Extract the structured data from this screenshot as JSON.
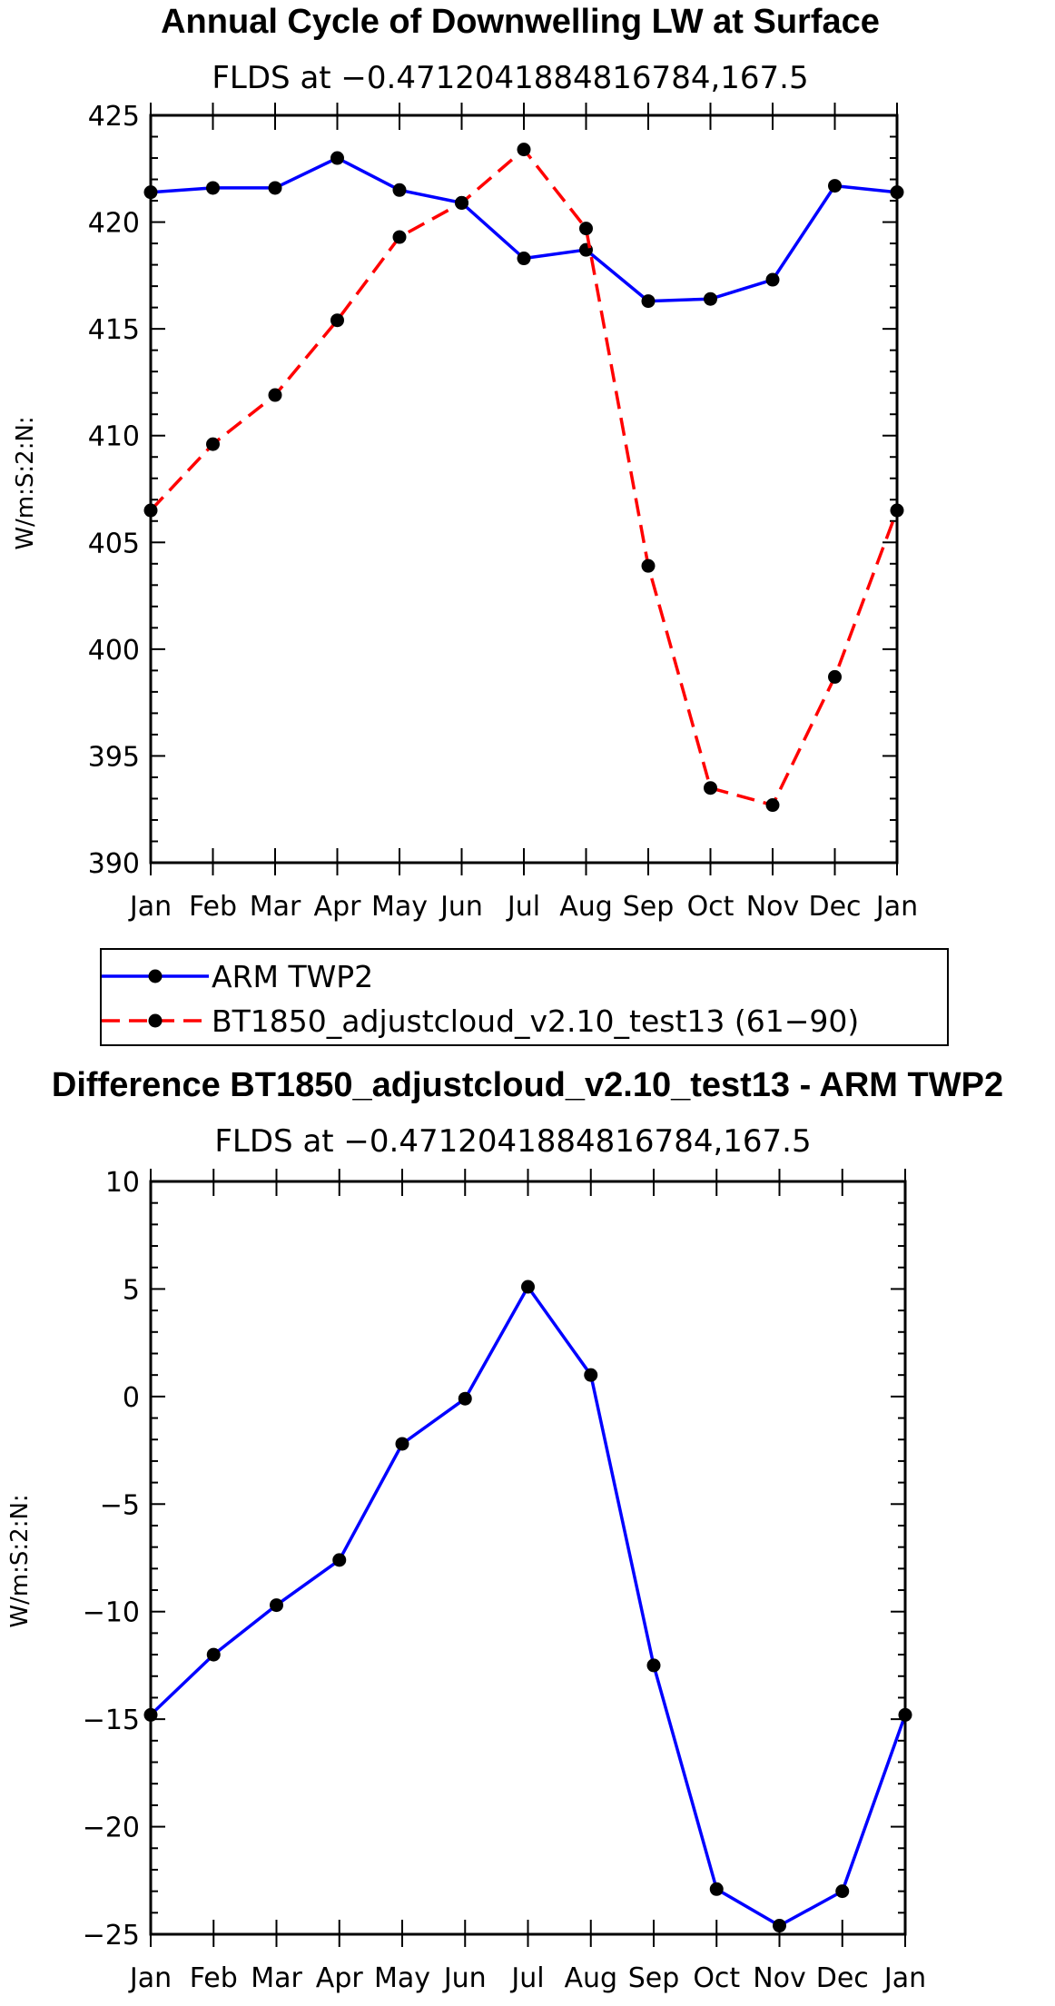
{
  "chart_data": [
    {
      "type": "line",
      "title": "Annual Cycle of Downwelling LW at Surface",
      "subtitle": "FLDS at −0.4712041884816784,167.5",
      "ylabel": "W/m:S:2:N:",
      "xlabel": "",
      "categories": [
        "Jan",
        "Feb",
        "Mar",
        "Apr",
        "May",
        "Jun",
        "Jul",
        "Aug",
        "Sep",
        "Oct",
        "Nov",
        "Dec",
        "Jan"
      ],
      "ylim": [
        390,
        425
      ],
      "yticks": [
        390,
        395,
        400,
        405,
        410,
        415,
        420,
        425
      ],
      "ytick_labels": [
        "390",
        "395",
        "400",
        "405",
        "410",
        "415",
        "420",
        "425"
      ],
      "series": [
        {
          "name": "ARM TWP2",
          "color": "#0000ff",
          "dash": "solid",
          "values": [
            421.4,
            421.6,
            421.6,
            423.0,
            421.5,
            420.9,
            418.3,
            418.7,
            416.3,
            416.4,
            417.3,
            421.7,
            421.4
          ]
        },
        {
          "name": "BT1850_adjustcloud_v2.10_test13 (61−90)",
          "color": "#ff0000",
          "dash": "dashed",
          "values": [
            406.5,
            409.6,
            411.9,
            415.4,
            419.3,
            420.9,
            423.4,
            419.7,
            403.9,
            393.5,
            392.7,
            398.7,
            406.5
          ]
        }
      ],
      "legend_position": "below"
    },
    {
      "type": "line",
      "title": "Difference BT1850_adjustcloud_v2.10_test13 - ARM TWP2",
      "subtitle": "FLDS at −0.4712041884816784,167.5",
      "ylabel": "W/m:S:2:N:",
      "xlabel": "",
      "categories": [
        "Jan",
        "Feb",
        "Mar",
        "Apr",
        "May",
        "Jun",
        "Jul",
        "Aug",
        "Sep",
        "Oct",
        "Nov",
        "Dec",
        "Jan"
      ],
      "ylim": [
        -25,
        10
      ],
      "yticks": [
        -25,
        -20,
        -15,
        -10,
        -5,
        0,
        5,
        10
      ],
      "ytick_labels": [
        "−25",
        "−20",
        "−15",
        "−10",
        "−5",
        "0",
        "5",
        "10"
      ],
      "series": [
        {
          "name": "Difference",
          "color": "#0000ff",
          "dash": "solid",
          "values": [
            -14.8,
            -12.0,
            -9.7,
            -7.6,
            -2.2,
            -0.1,
            5.1,
            1.0,
            -12.5,
            -22.9,
            -24.6,
            -23.0,
            -14.8
          ]
        }
      ]
    }
  ]
}
